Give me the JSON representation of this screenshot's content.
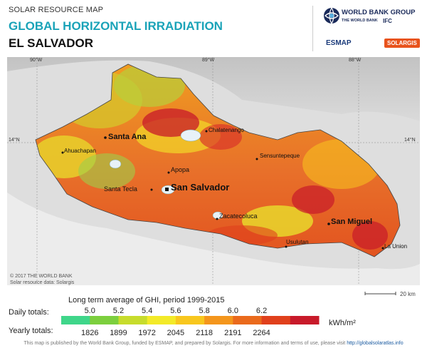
{
  "header": {
    "subtitle": "SOLAR RESOURCE MAP",
    "title": "GLOBAL HORIZONTAL IRRADIATION",
    "country": "EL SALVADOR"
  },
  "logos": {
    "world_bank_group": "WORLD BANK GROUP",
    "world_bank": "THE WORLD BANK",
    "ifc": "IFC",
    "esmap": "ESMAP",
    "solargis": "SOLARGIS"
  },
  "map": {
    "lon_labels": [
      "90°W",
      "89°W",
      "88°W"
    ],
    "lat_label": "14°N",
    "cities": {
      "santa_ana": "Santa Ana",
      "chalatenango": "Chalatenango",
      "ahuachapan": "Ahuachapan",
      "sensuntepeque": "Sensuntepeque",
      "apopa": "Apopa",
      "santa_tecla": "Santa Tecla",
      "san_salvador": "San Salvador",
      "zacatecoluca": "Zacatecoluca",
      "san_miguel": "San Miguel",
      "usulutan": "Usulutan",
      "la_union": "La Union"
    },
    "credit_1": "© 2017 THE WORLD BANK",
    "credit_2": "Solar resource data: Solargis",
    "scale_label": "20 km"
  },
  "legend": {
    "caption": "Long term average of GHI, period 1999-2015",
    "daily_label": "Daily totals:",
    "yearly_label": "Yearly totals:",
    "unit": "kWh/m²",
    "daily_values": [
      "5.0",
      "5.2",
      "5.4",
      "5.6",
      "5.8",
      "6.0",
      "6.2"
    ],
    "yearly_values": [
      "1826",
      "1899",
      "1972",
      "2045",
      "2118",
      "2191",
      "2264"
    ],
    "colors": [
      "#3fd68a",
      "#7ccf3e",
      "#c7dc2c",
      "#f3ea28",
      "#f8c71e",
      "#f4961c",
      "#ea6a1c",
      "#e0401c",
      "#c81a2a"
    ]
  },
  "footer": {
    "text": "This map is published by the World Bank Group, funded by ESMAP, and prepared by Solargis. For more information and terms of use, please visit",
    "link": "http://globalsolaratlas.info"
  }
}
